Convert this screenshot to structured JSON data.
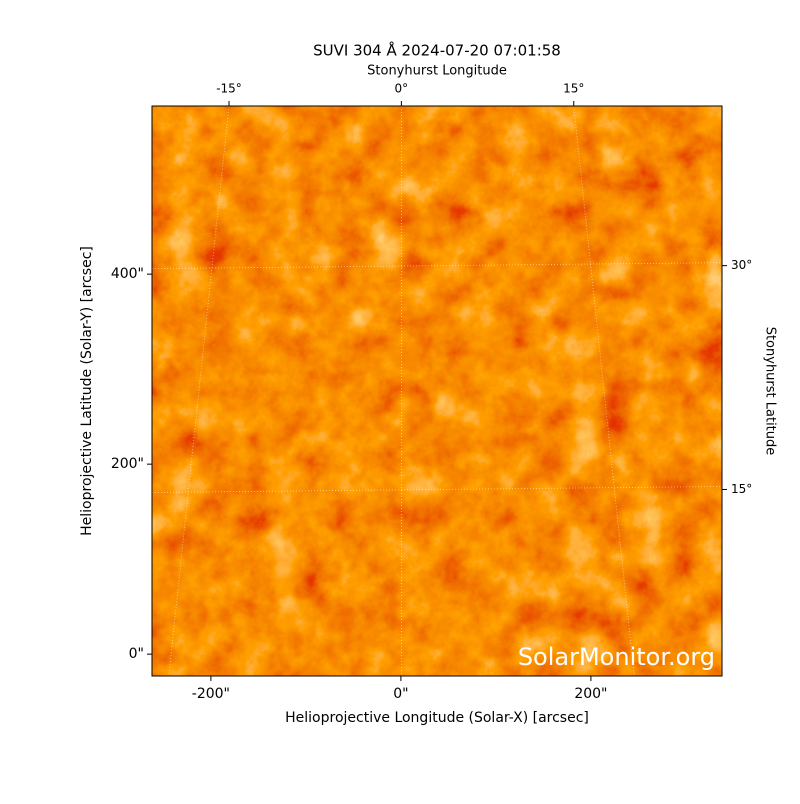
{
  "chart_data": {
    "type": "image",
    "title": "SUVI 304 Å 2024-07-20 07:01:58",
    "xlabel": "Helioprojective Longitude (Solar-X) [arcsec]",
    "ylabel": "Helioprojective Latitude (Solar-Y) [arcsec]",
    "x2label": "Stonyhurst Longitude",
    "y2label": "Stonyhurst Latitude",
    "watermark": "SolarMonitor.org",
    "xlim": [
      -262,
      338
    ],
    "ylim": [
      -23,
      577
    ],
    "xticks": [
      {
        "value": -200,
        "label": "-200\""
      },
      {
        "value": 0,
        "label": "0\""
      },
      {
        "value": 200,
        "label": "200\""
      }
    ],
    "yticks": [
      {
        "value": 0,
        "label": "0\""
      },
      {
        "value": 200,
        "label": "200\""
      },
      {
        "value": 400,
        "label": "400\""
      }
    ],
    "x2lim": [
      -21.7,
      27.9
    ],
    "x2ticks": [
      {
        "value": -15,
        "label": "-15°"
      },
      {
        "value": 0,
        "label": "0°"
      },
      {
        "value": 15,
        "label": "15°"
      }
    ],
    "y2lim": [
      2.5,
      40.7
    ],
    "y2ticks": [
      {
        "value": 15,
        "label": "15°"
      },
      {
        "value": 30,
        "label": "30°"
      }
    ],
    "grid": true
  }
}
